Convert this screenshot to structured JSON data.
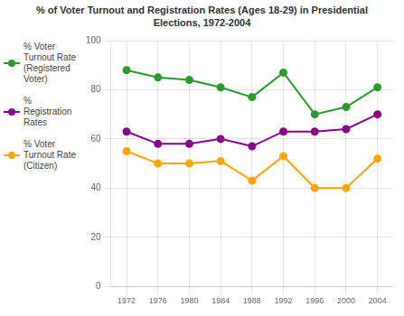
{
  "chart_data": {
    "type": "line",
    "title": "% of Voter Turnout and Registration Rates (Ages 18-29) in Presidential\nElections, 1972-2004",
    "x": [
      1972,
      1976,
      1980,
      1984,
      1988,
      1992,
      1996,
      2000,
      2004
    ],
    "series": [
      {
        "name": "% Voter\nTurnout Rate\n(Registered\nVoter)",
        "color": "#2d9a2d",
        "values": [
          88,
          85,
          84,
          81,
          77,
          87,
          70,
          73,
          81
        ]
      },
      {
        "name": "%\nRegistration\nRates",
        "color": "#8b008b",
        "values": [
          63,
          58,
          58,
          60,
          57,
          63,
          63,
          64,
          70
        ]
      },
      {
        "name": "% Voter\nTurnout Rate\n(Citizen)",
        "color": "#ffa500",
        "values": [
          55,
          50,
          50,
          51,
          43,
          53,
          40,
          40,
          52
        ]
      }
    ],
    "xlim": [
      1970,
      2006
    ],
    "xticks": [
      1972,
      1976,
      1980,
      1984,
      1988,
      1992,
      1996,
      2000,
      2004
    ],
    "ylim": [
      0,
      100
    ],
    "yticks": [
      0,
      20,
      40,
      60,
      80,
      100
    ],
    "grid": true,
    "legend": "left",
    "marker": "circle"
  }
}
